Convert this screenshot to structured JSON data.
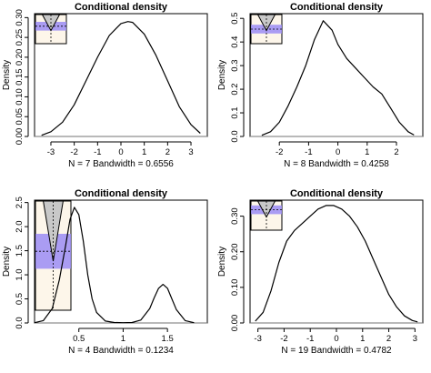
{
  "chart_data": [
    {
      "type": "line",
      "title": "Conditional density",
      "xlabel": "N = 7   Bandwidth = 0.6556",
      "ylabel": "Density",
      "xlim": [
        -3.7,
        3.7
      ],
      "ylim": [
        0,
        0.31
      ],
      "xticks": [
        -3,
        -2,
        -1,
        0,
        1,
        2,
        3
      ],
      "yticks": [
        0.0,
        0.05,
        0.1,
        0.15,
        0.2,
        0.25,
        0.3
      ],
      "ytick_labels": [
        "0.00",
        "0.05",
        "0.10",
        "0.15",
        "0.20",
        "0.25",
        "0.30"
      ],
      "x": [
        -3.4,
        -3.0,
        -2.5,
        -2.0,
        -1.5,
        -1.0,
        -0.5,
        0.0,
        0.3,
        0.5,
        1.0,
        1.5,
        2.0,
        2.5,
        3.0,
        3.4
      ],
      "y": [
        0.003,
        0.012,
        0.036,
        0.08,
        0.14,
        0.2,
        0.255,
        0.285,
        0.29,
        0.288,
        0.258,
        0.205,
        0.14,
        0.075,
        0.03,
        0.008
      ],
      "inset": {
        "type": "cone",
        "fill": "#9b8cf5"
      }
    },
    {
      "type": "line",
      "title": "Conditional density",
      "xlabel": "N = 8   Bandwidth = 0.4258",
      "ylabel": "Density",
      "xlim": [
        -3.0,
        2.9
      ],
      "ylim": [
        0,
        0.52
      ],
      "xticks": [
        -2,
        -1,
        0,
        1,
        2
      ],
      "yticks": [
        0.0,
        0.1,
        0.2,
        0.3,
        0.4,
        0.5
      ],
      "ytick_labels": [
        "0.0",
        "0.1",
        "0.2",
        "0.3",
        "0.4",
        "0.5"
      ],
      "x": [
        -2.6,
        -2.3,
        -2.0,
        -1.7,
        -1.4,
        -1.1,
        -0.8,
        -0.5,
        -0.2,
        0.0,
        0.3,
        0.6,
        0.9,
        1.2,
        1.5,
        1.8,
        2.1,
        2.4,
        2.6
      ],
      "y": [
        0.005,
        0.02,
        0.06,
        0.13,
        0.21,
        0.3,
        0.41,
        0.49,
        0.45,
        0.39,
        0.33,
        0.29,
        0.25,
        0.21,
        0.18,
        0.12,
        0.06,
        0.02,
        0.006
      ],
      "inset": {
        "type": "cone",
        "fill": "#9b8cf5"
      }
    },
    {
      "type": "line",
      "title": "Conditional density",
      "xlabel": "N = 4   Bandwidth = 0.1234",
      "ylabel": "Density",
      "xlim": [
        0.0,
        1.95
      ],
      "ylim": [
        0,
        2.55
      ],
      "xticks": [
        0.5,
        1.0,
        1.5
      ],
      "yticks": [
        0.0,
        0.5,
        1.0,
        1.5,
        2.0,
        2.5
      ],
      "ytick_labels": [
        "0.0",
        "0.5",
        "1.0",
        "1.5",
        "2.0",
        "2.5"
      ],
      "x": [
        0.0,
        0.1,
        0.2,
        0.28,
        0.35,
        0.4,
        0.45,
        0.5,
        0.55,
        0.6,
        0.65,
        0.7,
        0.8,
        0.9,
        1.0,
        1.1,
        1.2,
        1.3,
        1.35,
        1.4,
        1.45,
        1.5,
        1.55,
        1.6,
        1.7,
        1.8
      ],
      "y": [
        0.005,
        0.05,
        0.3,
        0.9,
        1.6,
        2.15,
        2.4,
        2.25,
        1.7,
        1.0,
        0.5,
        0.22,
        0.04,
        0.01,
        0.005,
        0.01,
        0.06,
        0.3,
        0.52,
        0.72,
        0.8,
        0.72,
        0.5,
        0.28,
        0.05,
        0.005
      ],
      "inset": {
        "type": "cone",
        "fill": "#9b8cf5"
      }
    },
    {
      "type": "line",
      "title": "Conditional density",
      "xlabel": "N = 19   Bandwidth = 0.4782",
      "ylabel": "Density",
      "xlim": [
        -3.3,
        3.3
      ],
      "ylim": [
        0,
        0.345
      ],
      "xticks": [
        -3,
        -2,
        -1,
        0,
        1,
        2,
        3
      ],
      "yticks": [
        0.0,
        0.1,
        0.2,
        0.3
      ],
      "ytick_labels": [
        "0.00",
        "0.10",
        "0.20",
        "0.30"
      ],
      "x": [
        -3.1,
        -2.8,
        -2.5,
        -2.2,
        -1.9,
        -1.6,
        -1.3,
        -1.0,
        -0.7,
        -0.4,
        -0.1,
        0.2,
        0.5,
        0.8,
        1.1,
        1.4,
        1.7,
        2.0,
        2.3,
        2.6,
        2.9,
        3.1
      ],
      "y": [
        0.005,
        0.03,
        0.09,
        0.17,
        0.23,
        0.26,
        0.28,
        0.3,
        0.32,
        0.33,
        0.33,
        0.32,
        0.3,
        0.27,
        0.23,
        0.18,
        0.13,
        0.08,
        0.045,
        0.02,
        0.007,
        0.003
      ],
      "inset": {
        "type": "cone",
        "fill": "#9b8cf5"
      }
    }
  ]
}
